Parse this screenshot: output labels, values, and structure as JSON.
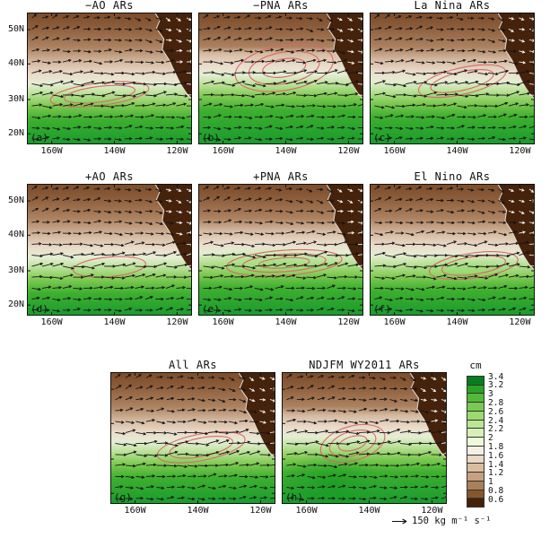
{
  "axes": {
    "lat_ticks": [
      "50N",
      "40N",
      "30N",
      "20N"
    ],
    "lon_ticks": [
      "160W",
      "140W",
      "120W"
    ]
  },
  "colorbar": {
    "title": "cm",
    "labels": [
      "3.4",
      "3.2",
      "3",
      "2.8",
      "2.6",
      "2.4",
      "2.2",
      "2",
      "1.8",
      "1.6",
      "1.4",
      "1.2",
      "1",
      "0.8",
      "0.6"
    ],
    "colors": [
      "#087d1f",
      "#2aa325",
      "#52b93a",
      "#79ca52",
      "#9cd96f",
      "#bce693",
      "#d8f0b8",
      "#eef8da",
      "#f6eee3",
      "#ead8c4",
      "#d9bd9f",
      "#c5a27f",
      "#a98057",
      "#85572d",
      "#47200a"
    ]
  },
  "reference_vector": {
    "arrow": "→",
    "label": "150 kg m⁻¹ s⁻¹"
  },
  "chart_data": {
    "type": "heatmap",
    "units": "cm",
    "colorbar_levels": [
      0.6,
      0.8,
      1,
      1.2,
      1.4,
      1.6,
      1.8,
      2,
      2.2,
      2.4,
      2.6,
      2.8,
      3,
      3.2,
      3.4
    ],
    "reference_vector_value": 150,
    "reference_vector_units": "kg m⁻¹ s⁻¹",
    "lat_ticks": [
      "20N",
      "30N",
      "40N",
      "50N"
    ],
    "lon_ticks": [
      "160W",
      "140W",
      "120W"
    ],
    "panels": [
      {
        "letter": "(a)",
        "title": "−AO ARs",
        "transition": 0.54,
        "contour": {
          "cx": 0.44,
          "cy": 0.62,
          "rx": 0.3,
          "ry": 0.085,
          "rot": -7,
          "rings": 2
        }
      },
      {
        "letter": "(b)",
        "title": "−PNA ARs",
        "transition": 0.47,
        "contour": {
          "cx": 0.52,
          "cy": 0.42,
          "rx": 0.3,
          "ry": 0.17,
          "rot": -10,
          "rings": 3
        }
      },
      {
        "letter": "(c)",
        "title": "La Nina ARs",
        "transition": 0.52,
        "contour": {
          "cx": 0.56,
          "cy": 0.52,
          "rx": 0.27,
          "ry": 0.1,
          "rot": -13,
          "rings": 2
        }
      },
      {
        "letter": "(d)",
        "title": "+AO ARs",
        "transition": 0.56,
        "contour": {
          "cx": 0.5,
          "cy": 0.63,
          "rx": 0.22,
          "ry": 0.075,
          "rot": -5,
          "rings": 1
        }
      },
      {
        "letter": "(e)",
        "title": "+PNA ARs",
        "transition": 0.52,
        "contour": {
          "cx": 0.52,
          "cy": 0.6,
          "rx": 0.35,
          "ry": 0.095,
          "rot": -4,
          "rings": 3
        },
        "tongue": {
          "cx": 0.45,
          "cy": 0.6,
          "rx": 0.48,
          "ry": 0.12,
          "color": "#9ede77"
        }
      },
      {
        "letter": "(f)",
        "title": "El Nino ARs",
        "transition": 0.54,
        "contour": {
          "cx": 0.63,
          "cy": 0.62,
          "rx": 0.27,
          "ry": 0.095,
          "rot": -8,
          "rings": 2
        },
        "tongue": {
          "cx": 0.6,
          "cy": 0.64,
          "rx": 0.42,
          "ry": 0.11,
          "color": "#9ede77"
        }
      },
      {
        "letter": "(g)",
        "title": "All ARs",
        "transition": 0.53,
        "contour": {
          "cx": 0.55,
          "cy": 0.57,
          "rx": 0.27,
          "ry": 0.1,
          "rot": -11,
          "rings": 2
        }
      },
      {
        "letter": "(h)",
        "title": "NDJFM WY2011 ARs",
        "transition": 0.49,
        "contour": {
          "cx": 0.43,
          "cy": 0.54,
          "rx": 0.2,
          "ry": 0.13,
          "rot": -16,
          "rings": 3
        },
        "tongue": {
          "cx": 0.3,
          "cy": 0.85,
          "rx": 0.3,
          "ry": 0.25,
          "color": "#169a22"
        }
      }
    ]
  }
}
